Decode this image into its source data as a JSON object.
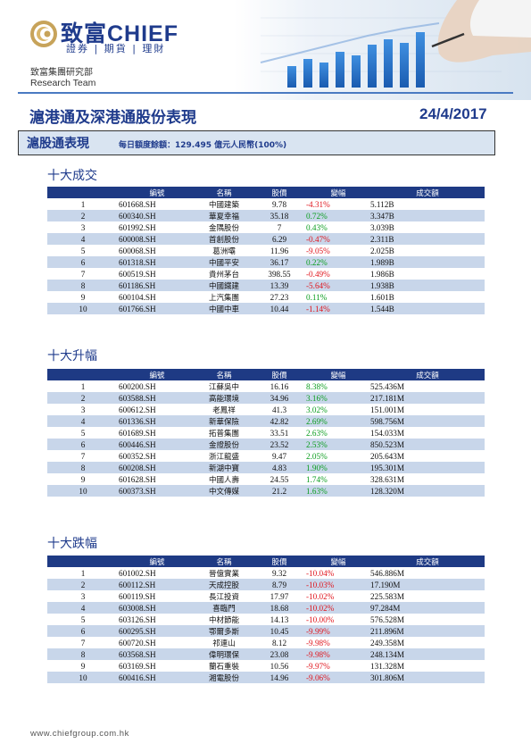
{
  "header": {
    "brand": "致富CHIEF",
    "brand_sub": "證券 | 期貨 | 理財",
    "research_cn": "致富集團研究部",
    "research_en": "Research Team",
    "title": "滬港通及深港通股份表現",
    "date": "24/4/2017"
  },
  "banner": {
    "title": "滬股通表現",
    "note": "每日額度餘額：129.495 億元人民幣(100%)"
  },
  "colors": {
    "brand_blue": "#1f3b8c",
    "header_fill": "#1e3a84",
    "row_stripe": "#c8d6ea",
    "up": "#0a9d1e",
    "down": "#e0141c"
  },
  "columns": [
    "",
    "編號",
    "名稱",
    "股價",
    "變幅",
    "成交額"
  ],
  "sections": [
    {
      "title": "十大成交",
      "rows": [
        {
          "rank": "1",
          "code": "601668.SH",
          "name": "中國建築",
          "price": "9.78",
          "change": "-4.31%",
          "dir": "down",
          "amount": "5.112B"
        },
        {
          "rank": "2",
          "code": "600340.SH",
          "name": "華夏幸福",
          "price": "35.18",
          "change": "0.72%",
          "dir": "up",
          "amount": "3.347B"
        },
        {
          "rank": "3",
          "code": "601992.SH",
          "name": "金隅股份",
          "price": "7",
          "change": "0.43%",
          "dir": "up",
          "amount": "3.039B"
        },
        {
          "rank": "4",
          "code": "600008.SH",
          "name": "首創股份",
          "price": "6.29",
          "change": "-0.47%",
          "dir": "down",
          "amount": "2.311B"
        },
        {
          "rank": "5",
          "code": "600068.SH",
          "name": "葛洲壩",
          "price": "11.96",
          "change": "-9.05%",
          "dir": "down",
          "amount": "2.025B"
        },
        {
          "rank": "6",
          "code": "601318.SH",
          "name": "中國平安",
          "price": "36.17",
          "change": "0.22%",
          "dir": "up",
          "amount": "1.989B"
        },
        {
          "rank": "7",
          "code": "600519.SH",
          "name": "貴州茅台",
          "price": "398.55",
          "change": "-0.49%",
          "dir": "down",
          "amount": "1.986B"
        },
        {
          "rank": "8",
          "code": "601186.SH",
          "name": "中國鐵建",
          "price": "13.39",
          "change": "-5.64%",
          "dir": "down",
          "amount": "1.938B"
        },
        {
          "rank": "9",
          "code": "600104.SH",
          "name": "上汽集團",
          "price": "27.23",
          "change": "0.11%",
          "dir": "up",
          "amount": "1.601B"
        },
        {
          "rank": "10",
          "code": "601766.SH",
          "name": "中國中車",
          "price": "10.44",
          "change": "-1.14%",
          "dir": "down",
          "amount": "1.544B"
        }
      ]
    },
    {
      "title": "十大升幅",
      "rows": [
        {
          "rank": "1",
          "code": "600200.SH",
          "name": "江蘇吳中",
          "price": "16.16",
          "change": "8.38%",
          "dir": "up",
          "amount": "525.436M"
        },
        {
          "rank": "2",
          "code": "603588.SH",
          "name": "高能環境",
          "price": "34.96",
          "change": "3.16%",
          "dir": "up",
          "amount": "217.181M"
        },
        {
          "rank": "3",
          "code": "600612.SH",
          "name": "老鳳祥",
          "price": "41.3",
          "change": "3.02%",
          "dir": "up",
          "amount": "151.001M"
        },
        {
          "rank": "4",
          "code": "601336.SH",
          "name": "新華保險",
          "price": "42.82",
          "change": "2.69%",
          "dir": "up",
          "amount": "598.756M"
        },
        {
          "rank": "5",
          "code": "601689.SH",
          "name": "拓普集團",
          "price": "33.51",
          "change": "2.63%",
          "dir": "up",
          "amount": "154.033M"
        },
        {
          "rank": "6",
          "code": "600446.SH",
          "name": "金證股份",
          "price": "23.52",
          "change": "2.53%",
          "dir": "up",
          "amount": "850.523M"
        },
        {
          "rank": "7",
          "code": "600352.SH",
          "name": "浙江龍盛",
          "price": "9.47",
          "change": "2.05%",
          "dir": "up",
          "amount": "205.643M"
        },
        {
          "rank": "8",
          "code": "600208.SH",
          "name": "新湖中寶",
          "price": "4.83",
          "change": "1.90%",
          "dir": "up",
          "amount": "195.301M"
        },
        {
          "rank": "9",
          "code": "601628.SH",
          "name": "中國人壽",
          "price": "24.55",
          "change": "1.74%",
          "dir": "up",
          "amount": "328.631M"
        },
        {
          "rank": "10",
          "code": "600373.SH",
          "name": "中文傳媒",
          "price": "21.2",
          "change": "1.63%",
          "dir": "up",
          "amount": "128.320M"
        }
      ]
    },
    {
      "title": "十大跌幅",
      "rows": [
        {
          "rank": "1",
          "code": "601002.SH",
          "name": "晉億實業",
          "price": "9.32",
          "change": "-10.04%",
          "dir": "down",
          "amount": "546.886M"
        },
        {
          "rank": "2",
          "code": "600112.SH",
          "name": "天成控股",
          "price": "8.79",
          "change": "-10.03%",
          "dir": "down",
          "amount": "17.190M"
        },
        {
          "rank": "3",
          "code": "600119.SH",
          "name": "長江投資",
          "price": "17.97",
          "change": "-10.02%",
          "dir": "down",
          "amount": "225.583M"
        },
        {
          "rank": "4",
          "code": "603008.SH",
          "name": "喜臨門",
          "price": "18.68",
          "change": "-10.02%",
          "dir": "down",
          "amount": "97.284M"
        },
        {
          "rank": "5",
          "code": "603126.SH",
          "name": "中材節能",
          "price": "14.13",
          "change": "-10.00%",
          "dir": "down",
          "amount": "576.528M"
        },
        {
          "rank": "6",
          "code": "600295.SH",
          "name": "鄂爾多斯",
          "price": "10.45",
          "change": "-9.99%",
          "dir": "down",
          "amount": "211.896M"
        },
        {
          "rank": "7",
          "code": "600720.SH",
          "name": "祁連山",
          "price": "8.12",
          "change": "-9.98%",
          "dir": "down",
          "amount": "249.358M"
        },
        {
          "rank": "8",
          "code": "603568.SH",
          "name": "偉明環保",
          "price": "23.08",
          "change": "-9.98%",
          "dir": "down",
          "amount": "248.134M"
        },
        {
          "rank": "9",
          "code": "603169.SH",
          "name": "蘭石重裝",
          "price": "10.56",
          "change": "-9.97%",
          "dir": "down",
          "amount": "131.328M"
        },
        {
          "rank": "10",
          "code": "600416.SH",
          "name": "湘電股份",
          "price": "14.96",
          "change": "-9.06%",
          "dir": "down",
          "amount": "301.806M"
        }
      ]
    }
  ],
  "footer": {
    "url": "www.chiefgroup.com.hk"
  }
}
